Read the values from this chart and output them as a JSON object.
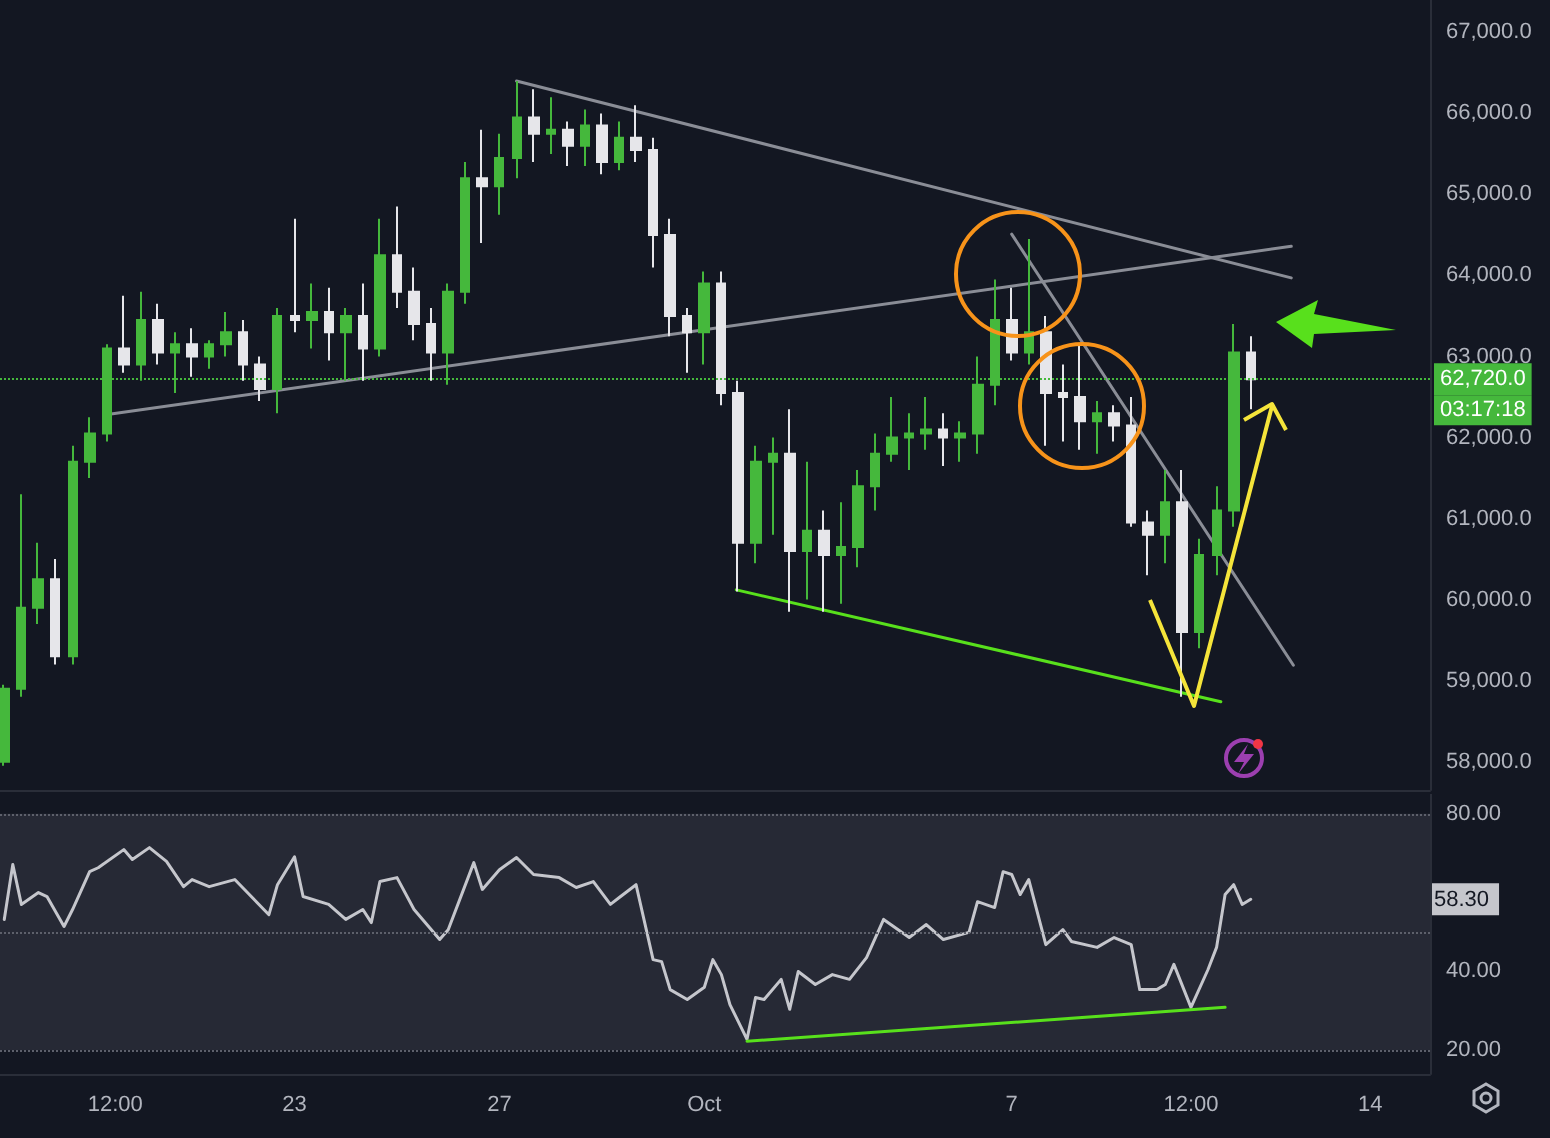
{
  "chart_data": [
    {
      "type": "candlestick",
      "x": [
        "--09-17T08:00",
        "--09-17T16:00",
        "--09-18T00:00",
        "--09-18T08:00",
        "--09-18T16:00",
        "--09-19T00:00",
        "--09-19T08:00",
        "--09-19T16:00",
        "--09-20T00:00",
        "--09-20T08:00",
        "--09-20T16:00",
        "--09-21T00:00",
        "--09-21T08:00",
        "--09-21T16:00",
        "--09-22T00:00",
        "--09-22T08:00",
        "--09-22T16:00",
        "--09-23T00:00",
        "--09-23T08:00",
        "--09-23T16:00",
        "--09-24T00:00",
        "--09-24T08:00",
        "--09-24T16:00",
        "--09-25T00:00",
        "--09-25T08:00",
        "--09-25T16:00",
        "--09-26T00:00",
        "--09-26T08:00",
        "--09-26T16:00",
        "--09-27T00:00",
        "--09-27T08:00",
        "--09-27T16:00",
        "--09-28T00:00",
        "--09-28T08:00",
        "--09-28T16:00",
        "--09-29T00:00",
        "--09-29T08:00",
        "--09-29T16:00",
        "--09-30T00:00",
        "--09-30T08:00",
        "--09-30T16:00",
        "--10-01T00:00",
        "--10-01T08:00",
        "--10-01T16:00",
        "--10-02T00:00",
        "--10-02T08:00",
        "--10-02T16:00",
        "--10-03T00:00",
        "--10-03T08:00",
        "--10-03T16:00",
        "--10-04T00:00",
        "--10-04T08:00",
        "--10-04T16:00",
        "--10-05T00:00",
        "--10-05T08:00",
        "--10-05T16:00",
        "--10-06T00:00",
        "--10-06T08:00",
        "--10-06T16:00",
        "--10-07T00:00",
        "--10-07T08:00",
        "--10-07T16:00",
        "--10-08T00:00",
        "--10-08T08:00",
        "--10-08T16:00",
        "--10-09T00:00",
        "--10-09T08:00",
        "--10-09T16:00",
        "--10-10T00:00",
        "--10-10T08:00",
        "--10-10T16:00",
        "--10-11T00:00",
        "--10-11T08:00",
        "--10-11T16:00"
      ],
      "ohlc": [
        [
          58000,
          58950,
          57950,
          58900
        ],
        [
          58900,
          61300,
          58800,
          59900
        ],
        [
          59900,
          60700,
          59700,
          60250
        ],
        [
          60250,
          60500,
          59200,
          59300
        ],
        [
          59300,
          61900,
          59200,
          61700
        ],
        [
          61700,
          62250,
          61500,
          62050
        ],
        [
          62050,
          63150,
          61950,
          63100
        ],
        [
          63100,
          63750,
          62800,
          62900
        ],
        [
          62900,
          63800,
          62700,
          63450
        ],
        [
          63450,
          63650,
          62900,
          63050
        ],
        [
          63050,
          63300,
          62550,
          63150
        ],
        [
          63150,
          63350,
          62750,
          63000
        ],
        [
          63000,
          63200,
          62850,
          63150
        ],
        [
          63150,
          63550,
          63000,
          63300
        ],
        [
          63300,
          63450,
          62700,
          62900
        ],
        [
          62900,
          63000,
          62450,
          62600
        ],
        [
          62600,
          63600,
          62300,
          63500
        ],
        [
          63500,
          64700,
          63300,
          63450
        ],
        [
          63450,
          63900,
          63100,
          63550
        ],
        [
          63550,
          63850,
          62950,
          63300
        ],
        [
          63300,
          63600,
          62700,
          63500
        ],
        [
          63500,
          63900,
          62700,
          63100
        ],
        [
          63100,
          64700,
          63000,
          64250
        ],
        [
          64250,
          64850,
          63600,
          63800
        ],
        [
          63800,
          64100,
          63200,
          63400
        ],
        [
          63400,
          63600,
          62700,
          63050
        ],
        [
          63050,
          63900,
          62650,
          63800
        ],
        [
          63800,
          65400,
          63650,
          65200
        ],
        [
          65200,
          65800,
          64400,
          65100
        ],
        [
          65100,
          65750,
          64750,
          65450
        ],
        [
          65450,
          66400,
          65200,
          65950
        ],
        [
          65950,
          66300,
          65400,
          65750
        ],
        [
          65750,
          66200,
          65500,
          65800
        ],
        [
          65800,
          65900,
          65350,
          65600
        ],
        [
          65600,
          66050,
          65350,
          65850
        ],
        [
          65850,
          66000,
          65250,
          65400
        ],
        [
          65400,
          65900,
          65300,
          65700
        ],
        [
          65700,
          66100,
          65400,
          65550
        ],
        [
          65550,
          65700,
          64100,
          64500
        ],
        [
          64500,
          64700,
          63250,
          63500
        ],
        [
          63500,
          63600,
          62800,
          63300
        ],
        [
          63300,
          64050,
          62900,
          63900
        ],
        [
          63900,
          64050,
          62400,
          62550
        ],
        [
          62550,
          62700,
          60100,
          60700
        ],
        [
          60700,
          61900,
          60450,
          61700
        ],
        [
          61700,
          62000,
          60800,
          61800
        ],
        [
          61800,
          62350,
          59850,
          60600
        ],
        [
          60600,
          61700,
          60000,
          60850
        ],
        [
          60850,
          61100,
          59850,
          60550
        ],
        [
          60550,
          61200,
          59950,
          60650
        ],
        [
          60650,
          61600,
          60400,
          61400
        ],
        [
          61400,
          62050,
          61100,
          61800
        ],
        [
          61800,
          62500,
          61700,
          62000
        ],
        [
          62000,
          62300,
          61600,
          62050
        ],
        [
          62050,
          62500,
          61850,
          62100
        ],
        [
          62100,
          62300,
          61650,
          62000
        ],
        [
          62000,
          62200,
          61700,
          62050
        ],
        [
          62050,
          63000,
          61800,
          62650
        ],
        [
          62650,
          63950,
          62400,
          63450
        ],
        [
          63450,
          63850,
          62950,
          63050
        ],
        [
          63050,
          64450,
          62900,
          63300
        ],
        [
          63300,
          63500,
          61900,
          62550
        ],
        [
          62550,
          62900,
          61950,
          62500
        ],
        [
          62500,
          63150,
          61850,
          62200
        ],
        [
          62200,
          62450,
          61800,
          62300
        ],
        [
          62300,
          62400,
          61950,
          62150
        ],
        [
          62150,
          62500,
          60900,
          60950
        ],
        [
          60950,
          61100,
          60300,
          60800
        ],
        [
          60800,
          61600,
          60450,
          61200
        ],
        [
          61200,
          61600,
          58800,
          59600
        ],
        [
          59600,
          60750,
          59400,
          60550
        ],
        [
          60550,
          61400,
          60300,
          61100
        ],
        [
          61100,
          63400,
          60900,
          63050
        ],
        [
          63050,
          63250,
          62350,
          62720
        ]
      ],
      "colors": [
        "#45b83c",
        "#45b83c",
        "#45b83c",
        "#e6e6ea",
        "#45b83c",
        "#45b83c",
        "#45b83c",
        "#e6e6ea",
        "#45b83c",
        "#e6e6ea",
        "#45b83c",
        "#e6e6ea",
        "#45b83c",
        "#45b83c",
        "#e6e6ea",
        "#e6e6ea",
        "#45b83c",
        "#e6e6ea",
        "#45b83c",
        "#e6e6ea",
        "#45b83c",
        "#e6e6ea",
        "#45b83c",
        "#e6e6ea",
        "#e6e6ea",
        "#e6e6ea",
        "#45b83c",
        "#45b83c",
        "#e6e6ea",
        "#45b83c",
        "#45b83c",
        "#e6e6ea",
        "#45b83c",
        "#e6e6ea",
        "#45b83c",
        "#e6e6ea",
        "#45b83c",
        "#e6e6ea",
        "#e6e6ea",
        "#e6e6ea",
        "#e6e6ea",
        "#45b83c",
        "#e6e6ea",
        "#e6e6ea",
        "#45b83c",
        "#45b83c",
        "#e6e6ea",
        "#45b83c",
        "#e6e6ea",
        "#45b83c",
        "#45b83c",
        "#45b83c",
        "#45b83c",
        "#45b83c",
        "#45b83c",
        "#e6e6ea",
        "#45b83c",
        "#45b83c",
        "#45b83c",
        "#e6e6ea",
        "#45b83c",
        "#e6e6ea",
        "#e6e6ea",
        "#e6e6ea",
        "#45b83c",
        "#e6e6ea",
        "#e6e6ea",
        "#e6e6ea",
        "#45b83c",
        "#e6e6ea",
        "#45b83c",
        "#45b83c",
        "#45b83c",
        "#e6e6ea"
      ],
      "series": [
        {
          "type": "line",
          "color": "#8a8d96",
          "x": [
            "--09-27T08:00",
            "--10-12T11:00"
          ],
          "values": [
            66400,
            63970
          ]
        },
        {
          "type": "line",
          "color": "#8a8d96",
          "x": [
            "--09-19T10:00",
            "--10-12T11:00"
          ],
          "values": [
            62290,
            64360
          ]
        },
        {
          "type": "line",
          "color": "#8a8d96",
          "x": [
            "--10-07T00:00",
            "--10-12T12:00"
          ],
          "values": [
            64510,
            59190
          ]
        },
        {
          "type": "line",
          "color": "#58e01c",
          "x": [
            "--10-01T15:00",
            "--10-11T02:00"
          ],
          "values": [
            60120,
            58740
          ]
        }
      ],
      "marker": "none",
      "xlim": [
        "--09-17T06:00",
        "--10-15T04:00"
      ],
      "ylim": [
        57650,
        67400
      ],
      "yticks": [
        {
          "value": 58000,
          "label": "58,000.0"
        },
        {
          "value": 59000,
          "label": "59,000.0"
        },
        {
          "value": 60000,
          "label": "60,000.0"
        },
        {
          "value": 61000,
          "label": "61,000.0"
        },
        {
          "value": 62000,
          "label": "62,000.0"
        },
        {
          "value": 63000,
          "label": "63,000.0"
        },
        {
          "value": 64000,
          "label": "64,000.0"
        },
        {
          "value": 65000,
          "label": "65,000.0"
        },
        {
          "value": 66000,
          "label": "66,000.0"
        },
        {
          "value": 67000,
          "label": "67,000.0"
        }
      ],
      "tick_labels": "y",
      "ref_lines": [
        {
          "axis": "y",
          "value": 62720,
          "label": "62,720.0",
          "color": "#45b83c",
          "line_style": "dotted"
        }
      ],
      "annotations": [
        "03:17:18"
      ]
    },
    {
      "type": "line",
      "series": [
        {
          "color": "#c5c6cc",
          "x": [
            "--09-17T08:00",
            "--09-17T12:00",
            "--09-17T16:00",
            "--09-18T00:00",
            "--09-18T04:00",
            "--09-18T12:00",
            "--09-18T16:00",
            "--09-19T00:00",
            "--09-19T04:00",
            "--09-19T16:00",
            "--09-19T20:00",
            "--09-20T04:00",
            "--09-20T12:00",
            "--09-20T20:00",
            "--09-21T00:00",
            "--09-21T08:00",
            "--09-21T20:00",
            "--09-22T12:00",
            "--09-22T16:00",
            "--09-23T00:00",
            "--09-23T04:00",
            "--09-23T16:00",
            "--09-24T00:00",
            "--09-24T08:00",
            "--09-24T12:00",
            "--09-24T16:00",
            "--09-25T00:00",
            "--09-25T08:00",
            "--09-25T20:00",
            "--09-26T00:00",
            "--09-26T12:00",
            "--09-26T16:00",
            "--09-27T00:00",
            "--09-27T08:00",
            "--09-27T16:00",
            "--09-28T04:00",
            "--09-28T12:00",
            "--09-28T20:00",
            "--09-29T04:00",
            "--09-29T08:00",
            "--09-29T16:00",
            "--09-30T00:00",
            "--09-30T04:00",
            "--09-30T08:00",
            "--09-30T16:00",
            "--10-01T00:00",
            "--10-01T04:00",
            "--10-01T08:00",
            "--10-01T12:00",
            "--10-01T20:00",
            "--10-02T00:00",
            "--10-02T04:00",
            "--10-02T12:00",
            "--10-02T16:00",
            "--10-02T20:00",
            "--10-03T04:00",
            "--10-03T12:00",
            "--10-03T20:00",
            "--10-04T04:00",
            "--10-04T12:00",
            "--10-05T00:00",
            "--10-05T08:00",
            "--10-05T16:00",
            "--10-06T04:00",
            "--10-06T08:00",
            "--10-06T16:00",
            "--10-06T20:00",
            "--10-07T00:00",
            "--10-07T04:00",
            "--10-07T08:00",
            "--10-07T16:00",
            "--10-08T00:00",
            "--10-08T04:00",
            "--10-08T16:00",
            "--10-09T00:00",
            "--10-09T08:00",
            "--10-09T12:00",
            "--10-09T20:00",
            "--10-10T00:00",
            "--10-10T04:00",
            "--10-10T12:00",
            "--10-10T20:00",
            "--10-11T00:00",
            "--10-11T04:00",
            "--10-11T08:00",
            "--10-11T12:00",
            "--10-11T16:00"
          ],
          "values": [
            53.2,
            67.1,
            57,
            60,
            59,
            51.4,
            55.7,
            65.3,
            66.3,
            70.9,
            68.4,
            71.4,
            67.9,
            61.5,
            63.3,
            61.5,
            63.3,
            54.4,
            62,
            69.1,
            59,
            57,
            53.2,
            55.7,
            52.4,
            62.8,
            63.8,
            55.7,
            48.1,
            50.6,
            67.6,
            60.8,
            65.8,
            68.9,
            64.6,
            63.8,
            61.3,
            62.8,
            57,
            58.7,
            62,
            43,
            42.5,
            35.4,
            32.9,
            36,
            43,
            39.2,
            31.6,
            22.8,
            33.4,
            32.9,
            38,
            30.4,
            40,
            36.7,
            39.2,
            38,
            43.5,
            53.2,
            48.6,
            51.9,
            48.1,
            49.9,
            57.7,
            56.2,
            65.3,
            64.6,
            59.5,
            63.3,
            46.8,
            50.6,
            47.6,
            46.1,
            48.6,
            46.8,
            35.4,
            35.4,
            36.7,
            41.8,
            30.9,
            40.5,
            46.1,
            59.5,
            62,
            57,
            58.3
          ]
        },
        {
          "color": "#58e01c",
          "x": [
            "--10-01T20:00",
            "--10-11T04:00"
          ],
          "values": [
            22.3,
            30.9
          ]
        }
      ],
      "marker": "none",
      "xlim": [
        "--09-17T06:00",
        "--10-15T04:00"
      ],
      "xticks": [
        {
          "value": "--09-19T12:00",
          "label": "12:00"
        },
        {
          "value": "--09-23",
          "label": "23"
        },
        {
          "value": "--09-27",
          "label": "27"
        },
        {
          "value": "--10-01",
          "label": "Oct"
        },
        {
          "value": "--10-07",
          "label": "7"
        },
        {
          "value": "--10-10T12:00",
          "label": "12:00"
        },
        {
          "value": "--10-14",
          "label": "14"
        }
      ],
      "ylim": [
        14,
        85
      ],
      "yticks": [
        {
          "value": 80,
          "label": "80.00"
        },
        {
          "value": 40,
          "label": "40.00"
        },
        {
          "value": 20,
          "label": "20.00"
        }
      ],
      "ref_lines": [
        {
          "axis": "y",
          "value": 80,
          "color": "#5d606b",
          "line_style": "dotted"
        },
        {
          "axis": "y",
          "value": 50,
          "color": "#5d606b",
          "line_style": "dotted"
        },
        {
          "axis": "y",
          "value": 20,
          "color": "#5d606b",
          "line_style": "dotted"
        }
      ],
      "bands": [
        {
          "axis": "y",
          "from": 20,
          "to": 80,
          "color": "#262935"
        }
      ],
      "annotations": [
        "58.30"
      ]
    }
  ]
}
